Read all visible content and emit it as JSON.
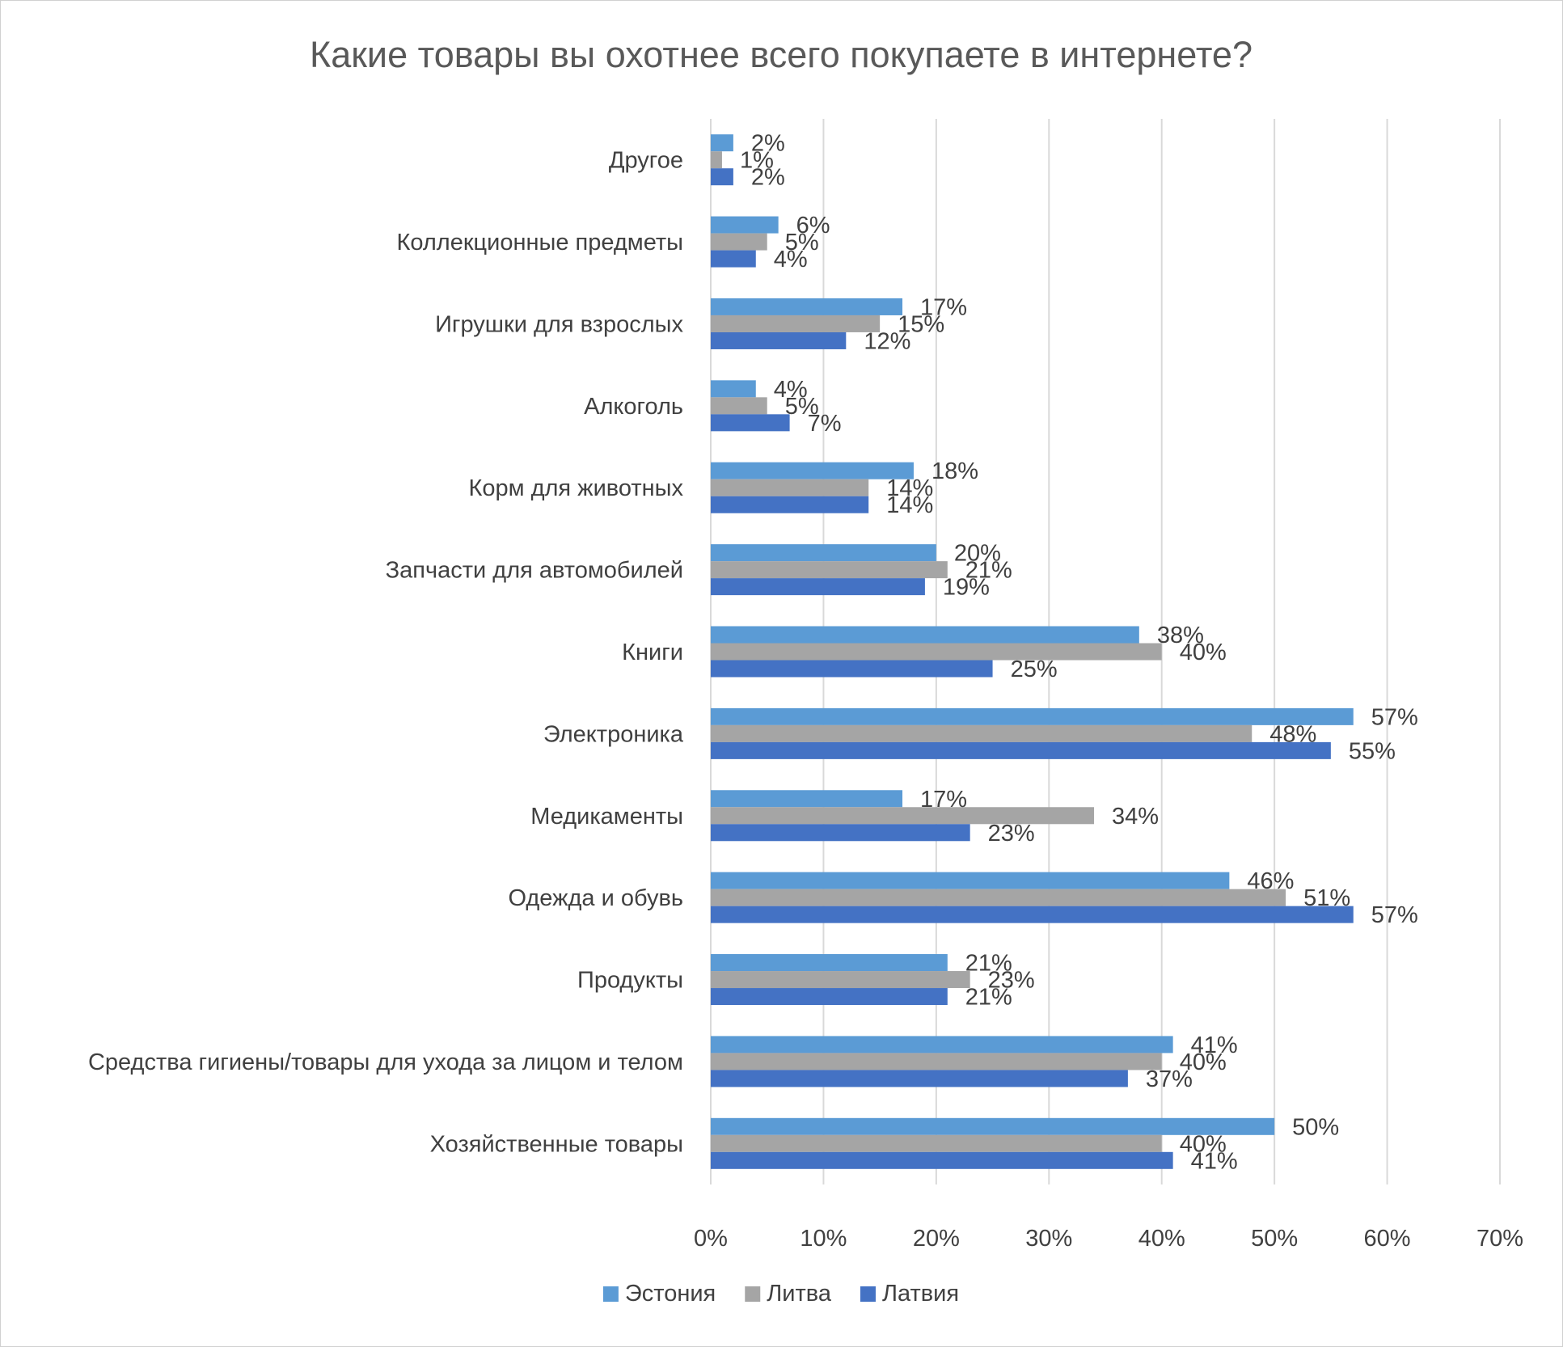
{
  "chart_data": {
    "type": "bar",
    "orientation": "horizontal",
    "title": "Какие товары вы охотнее всего покупаете в интернете?",
    "xlabel": "",
    "ylabel": "",
    "xlim": [
      0,
      0.7
    ],
    "x_ticks": [
      "0%",
      "10%",
      "20%",
      "30%",
      "40%",
      "50%",
      "60%",
      "70%"
    ],
    "grid": true,
    "legend_position": "bottom",
    "categories": [
      "Другое",
      "Коллекционные предметы",
      "Игрушки для взрослых",
      "Алкоголь",
      "Корм для животных",
      "Запчасти для автомобилей",
      "Книги",
      "Электроника",
      "Медикаменты",
      "Одежда и обувь",
      "Продукты",
      "Средства гигиены/товары для ухода за лицом и телом",
      "Хозяйственные товары"
    ],
    "series": [
      {
        "name": "Эстония",
        "color": "#5B9BD5",
        "values": [
          0.02,
          0.06,
          0.17,
          0.04,
          0.18,
          0.2,
          0.38,
          0.57,
          0.17,
          0.46,
          0.21,
          0.41,
          0.5
        ],
        "labels": [
          "2%",
          "6%",
          "17%",
          "4%",
          "18%",
          "20%",
          "38%",
          "57%",
          "17%",
          "46%",
          "21%",
          "41%",
          "50%"
        ]
      },
      {
        "name": "Литва",
        "color": "#A5A5A5",
        "values": [
          0.01,
          0.05,
          0.15,
          0.05,
          0.14,
          0.21,
          0.4,
          0.48,
          0.34,
          0.51,
          0.23,
          0.4,
          0.4
        ],
        "labels": [
          "1%",
          "5%",
          "15%",
          "5%",
          "14%",
          "21%",
          "40%",
          "48%",
          "34%",
          "51%",
          "23%",
          "40%",
          "40%"
        ]
      },
      {
        "name": "Латвия",
        "color": "#4472C4",
        "values": [
          0.02,
          0.04,
          0.12,
          0.07,
          0.14,
          0.19,
          0.25,
          0.55,
          0.23,
          0.57,
          0.21,
          0.37,
          0.41
        ],
        "labels": [
          "2%",
          "4%",
          "12%",
          "7%",
          "14%",
          "19%",
          "25%",
          "55%",
          "23%",
          "57%",
          "21%",
          "37%",
          "41%"
        ]
      }
    ]
  }
}
